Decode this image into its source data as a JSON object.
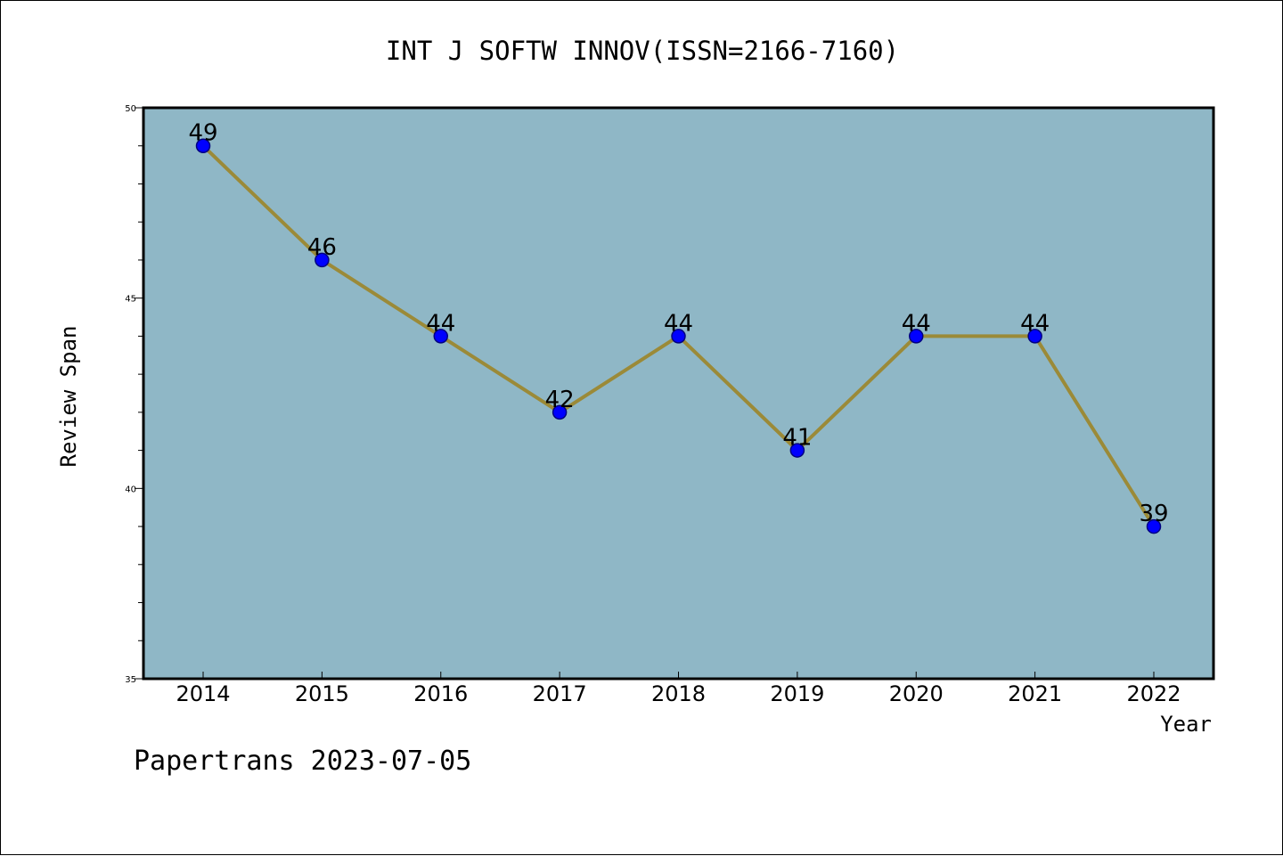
{
  "chart_data": {
    "type": "line",
    "title": "INT J SOFTW INNOV(ISSN=2166-7160)",
    "xlabel": "Year",
    "ylabel": "Review Span",
    "categories": [
      "2014",
      "2015",
      "2016",
      "2017",
      "2018",
      "2019",
      "2020",
      "2021",
      "2022"
    ],
    "series": [
      {
        "values": [
          49,
          46,
          44,
          42,
          44,
          41,
          44,
          44,
          39
        ]
      }
    ],
    "ylim": [
      35,
      50
    ],
    "yticks": [
      35,
      40,
      45,
      50
    ],
    "grid": false,
    "legend": "none",
    "colors": {
      "plot_background": "#8fb7c6",
      "line": "#9b8a38",
      "marker_fill": "#0000ff",
      "marker_stroke": "#000080"
    }
  },
  "footer": {
    "text": "Papertrans 2023-07-05"
  }
}
